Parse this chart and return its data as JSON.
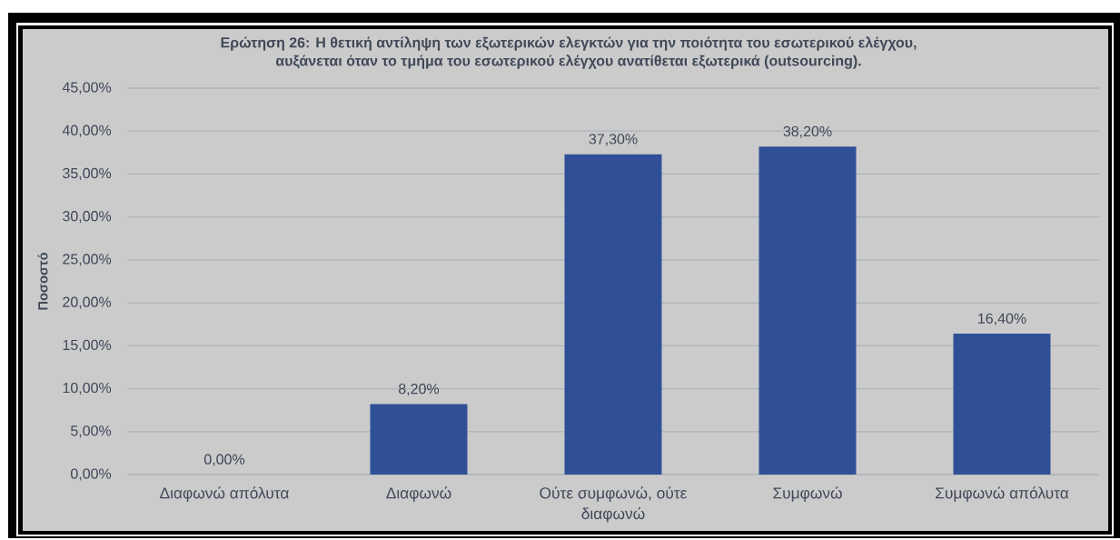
{
  "chart_data": {
    "type": "bar",
    "title": "Ερώτηση 26: Η θετική αντίληψη των εξωτερικών ελεγκτών για την ποιότητα του εσωτερικού ελέγχου, αυξάνεται όταν το τμήμα του εσωτερικού ελέγχου ανατίθεται εξωτερικά (outsourcing).",
    "ylabel": "Ποσοστό",
    "categories": [
      "Διαφωνώ απόλυτα",
      "Διαφωνώ",
      "Ούτε συμφωνώ, ούτε διαφωνώ",
      "Συμφωνώ",
      "Συμφωνώ απόλυτα"
    ],
    "values": [
      0,
      8.2,
      37.3,
      38.2,
      16.4
    ],
    "value_labels": [
      "0,00%",
      "8,20%",
      "37,30%",
      "38,20%",
      "16,40%"
    ],
    "color": "#2f5097",
    "ylim": [
      0,
      45
    ],
    "yticks": [
      {
        "value": 0,
        "label": "0,00%"
      },
      {
        "value": 5,
        "label": "5,00%"
      },
      {
        "value": 10,
        "label": "10,00%"
      },
      {
        "value": 15,
        "label": "15,00%"
      },
      {
        "value": 20,
        "label": "20,00%"
      },
      {
        "value": 25,
        "label": "25,00%"
      },
      {
        "value": 30,
        "label": "30,00%"
      },
      {
        "value": 35,
        "label": "35,00%"
      },
      {
        "value": 40,
        "label": "40,00%"
      },
      {
        "value": 45,
        "label": "45,00%"
      }
    ],
    "grid": "y"
  }
}
